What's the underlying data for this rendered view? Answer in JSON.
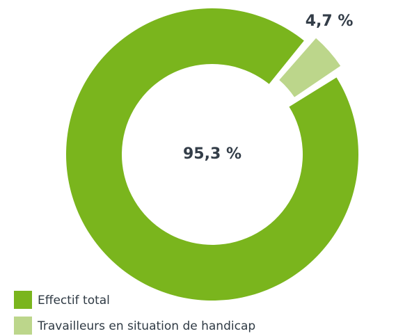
{
  "chart_data": {
    "type": "donut",
    "categories": [
      "Effectif total",
      "Travailleurs en situation de handicap"
    ],
    "values": [
      95.3,
      4.7
    ],
    "value_labels": [
      "95,3 %",
      "4,7 %"
    ],
    "colors": [
      "#7ab51d",
      "#bcd68b"
    ],
    "legend": "bottom-left"
  }
}
